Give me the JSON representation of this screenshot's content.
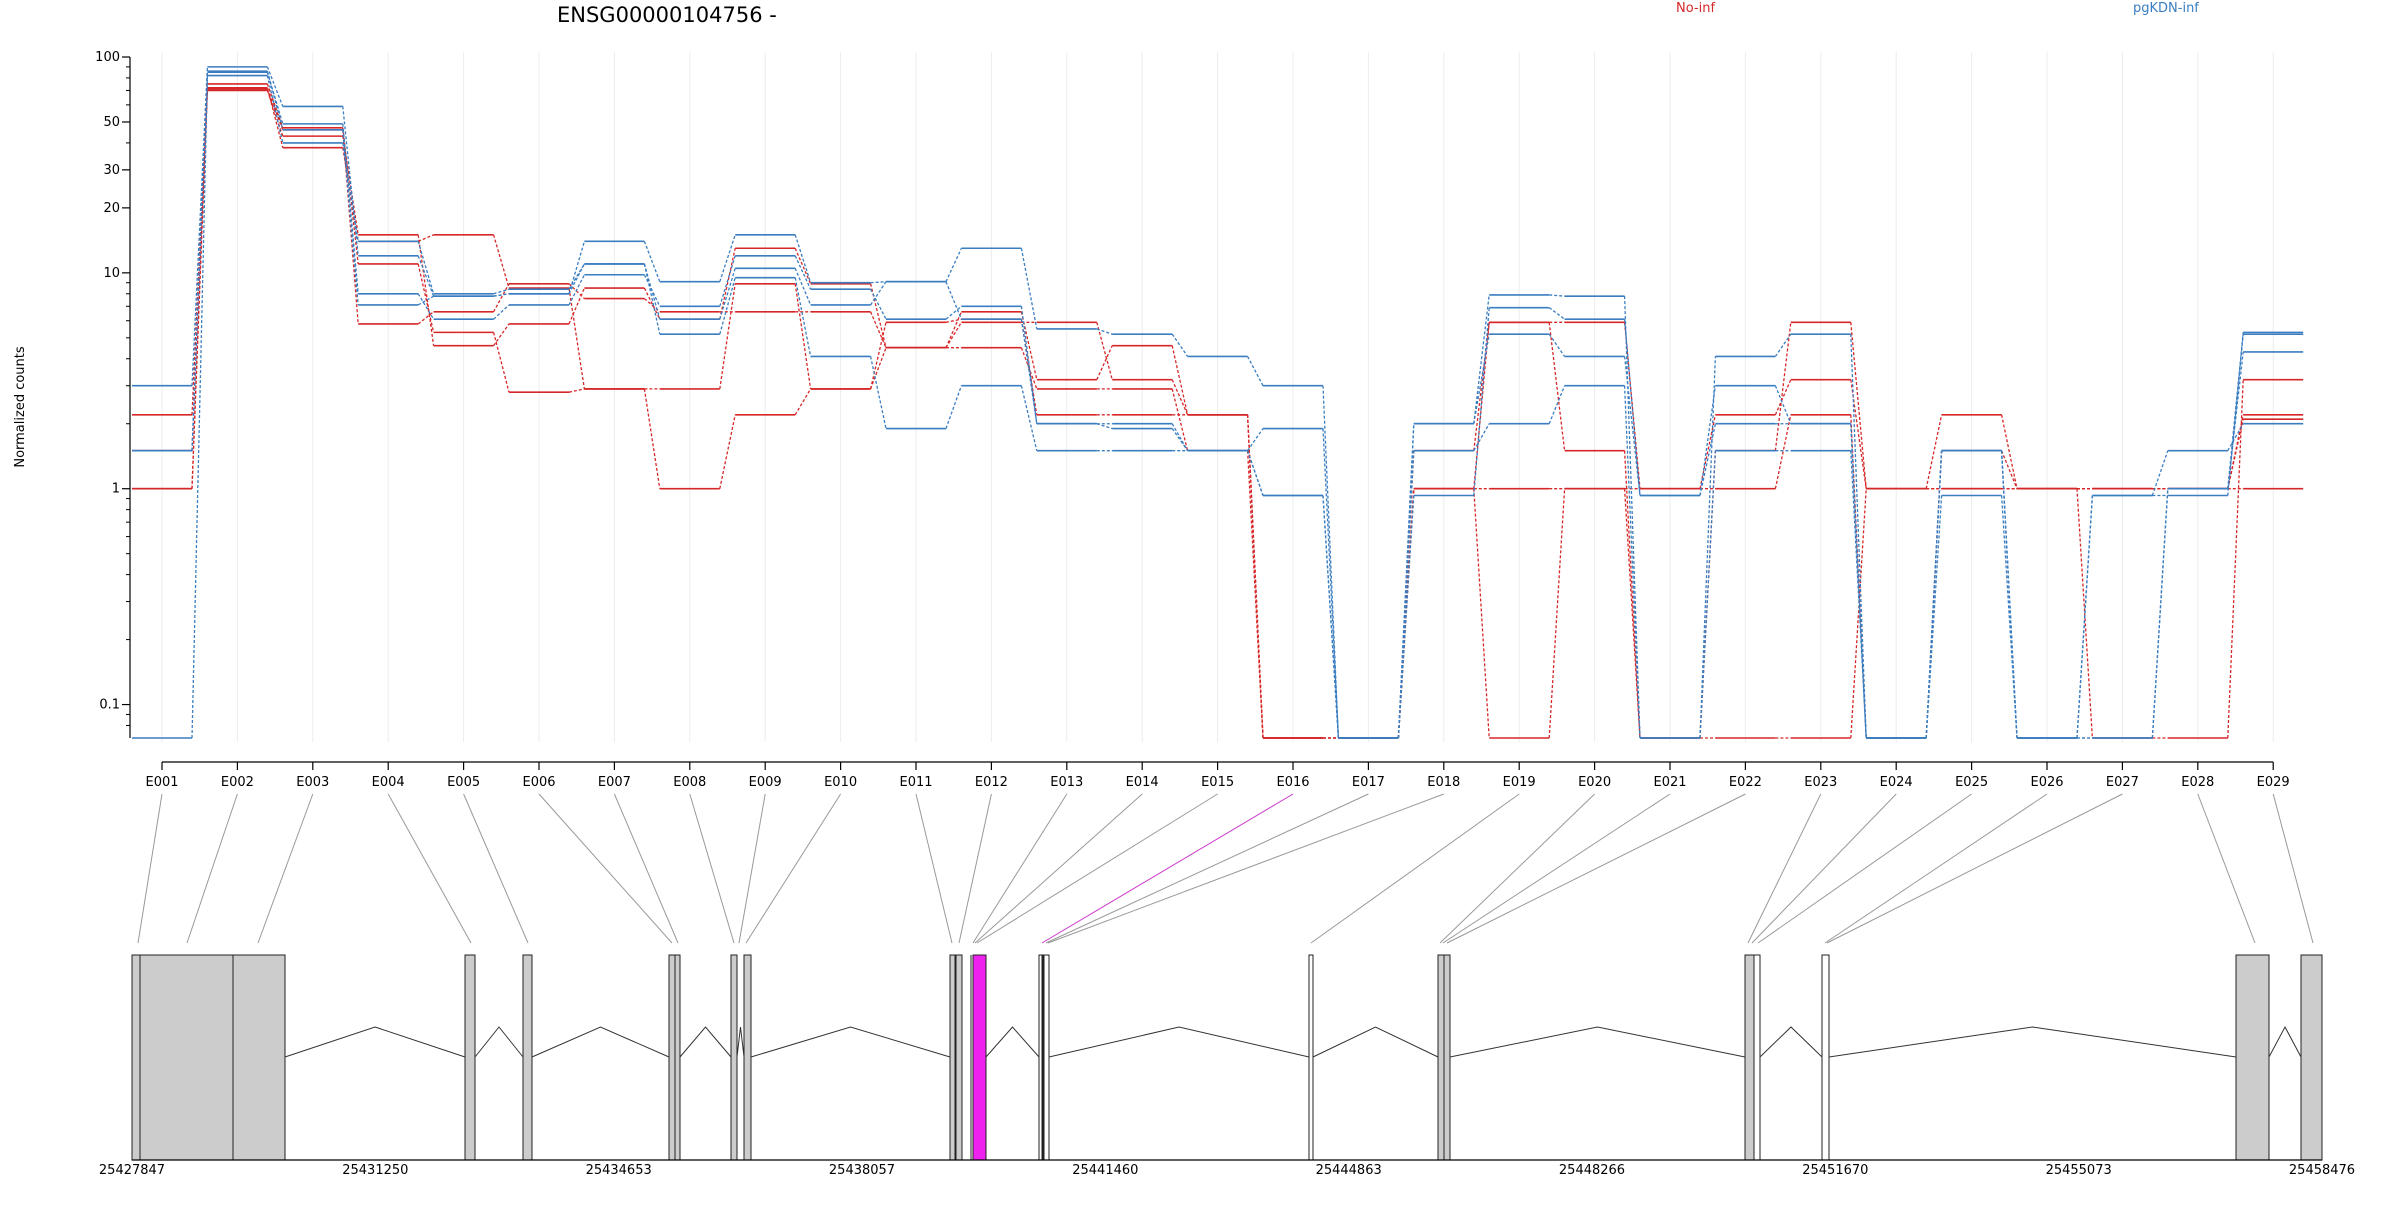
{
  "chart_data": {
    "type": "line",
    "title": "ENSG00000104756 -",
    "ylabel": "Normalized counts",
    "xlabel": "",
    "yscale": "log",
    "ylim": [
      0.07,
      100
    ],
    "y_ticks": [
      0.1,
      1,
      10,
      20,
      30,
      50,
      100
    ],
    "y_tick_labels": [
      "0.1",
      "1",
      "10",
      "20",
      "30",
      "50",
      "100"
    ],
    "grid": "vertical-light",
    "legend_placement": "top",
    "zero_floor_value": 0.07,
    "categories": [
      "E001",
      "E002",
      "E003",
      "E004",
      "E005",
      "E006",
      "E007",
      "E008",
      "E009",
      "E010",
      "E011",
      "E012",
      "E013",
      "E014",
      "E015",
      "E016",
      "E017",
      "E018",
      "E019",
      "E020",
      "E021",
      "E022",
      "E023",
      "E024",
      "E025",
      "E026",
      "E027",
      "E028",
      "E029"
    ],
    "groups": [
      {
        "name": "No-inf",
        "color": "#d62728"
      },
      {
        "name": "pgKDN-inf",
        "color": "#3a7dc0"
      }
    ],
    "series": [
      {
        "group": "No-inf",
        "values": [
          1.5,
          70,
          43,
          15,
          4.6,
          5.8,
          8.5,
          6.1,
          13,
          8.9,
          4.5,
          5.9,
          5.9,
          3.2,
          2.2,
          0.07,
          0.07,
          1.0,
          1.0,
          1.0,
          1.0,
          1.0,
          2.2,
          0.07,
          1.5,
          1.0,
          1.0,
          1.0,
          2.2
        ]
      },
      {
        "group": "No-inf",
        "values": [
          2.2,
          72,
          38,
          14,
          15,
          8.5,
          2.9,
          2.9,
          8.9,
          2.9,
          5.9,
          6.1,
          2.2,
          2.2,
          2.2,
          0.07,
          0.07,
          1.0,
          0.07,
          1.0,
          0.07,
          1.5,
          5.9,
          1.0,
          1.0,
          1.0,
          0.07,
          0.07,
          3.2
        ]
      },
      {
        "group": "No-inf",
        "values": [
          1.0,
          75,
          47,
          11,
          5.3,
          2.8,
          2.9,
          1.0,
          2.2,
          2.9,
          4.5,
          4.5,
          2.9,
          2.9,
          1.5,
          0.07,
          0.07,
          1.5,
          5.9,
          1.5,
          0.07,
          0.07,
          0.07,
          1.0,
          2.2,
          1.0,
          1.0,
          1.0,
          1.0
        ]
      },
      {
        "group": "No-inf",
        "values": [
          1.0,
          71,
          46,
          5.8,
          6.6,
          8.9,
          7.6,
          6.6,
          6.6,
          6.6,
          4.5,
          6.6,
          3.2,
          4.6,
          2.2,
          0.07,
          0.07,
          1.0,
          5.9,
          5.9,
          1.0,
          2.2,
          3.2,
          1.0,
          1.0,
          1.0,
          1.0,
          1.0,
          2.1
        ]
      },
      {
        "group": "pgKDN-inf",
        "values": [
          3.0,
          90,
          59,
          12,
          7.8,
          8.0,
          14,
          9.1,
          15,
          9.0,
          9.1,
          13,
          5.5,
          5.2,
          4.1,
          3.0,
          0.07,
          2.0,
          7.9,
          7.8,
          0.07,
          4.1,
          5.2,
          0.07,
          1.5,
          0.07,
          0.07,
          1.0,
          4.3
        ]
      },
      {
        "group": "pgKDN-inf",
        "values": [
          1.5,
          85,
          49,
          8.0,
          6.1,
          7.1,
          9.8,
          7.0,
          12,
          8.4,
          6.1,
          7.0,
          2.0,
          1.9,
          1.5,
          0.93,
          0.07,
          1.5,
          2.0,
          3.0,
          0.07,
          1.5,
          1.5,
          0.07,
          0.93,
          0.07,
          0.93,
          0.93,
          5.2
        ]
      },
      {
        "group": "pgKDN-inf",
        "values": [
          0.07,
          82,
          40,
          14,
          8.0,
          8.4,
          11,
          5.2,
          9.5,
          4.1,
          1.9,
          3.0,
          1.5,
          1.5,
          1.5,
          1.9,
          0.07,
          0.93,
          6.9,
          6.1,
          0.93,
          3.0,
          2.0,
          0.07,
          1.5,
          0.07,
          0.07,
          1.0,
          5.3
        ]
      },
      {
        "group": "pgKDN-inf",
        "values": [
          1.5,
          86,
          46,
          7.1,
          7.8,
          8.0,
          11,
          6.1,
          10.5,
          7.1,
          9.1,
          6.1,
          2.0,
          2.0,
          1.5,
          0.93,
          0.07,
          2.0,
          5.2,
          4.1,
          0.93,
          2.0,
          2.0,
          0.07,
          1.5,
          0.07,
          0.93,
          1.5,
          2.0
        ]
      }
    ],
    "gene_model": {
      "coordinate_labels": [
        "25427847",
        "25431250",
        "25434653",
        "25438057",
        "25441460",
        "25444863",
        "25448266",
        "25451670",
        "25455073",
        "25458476"
      ],
      "highlighted_exon": "E016"
    }
  }
}
